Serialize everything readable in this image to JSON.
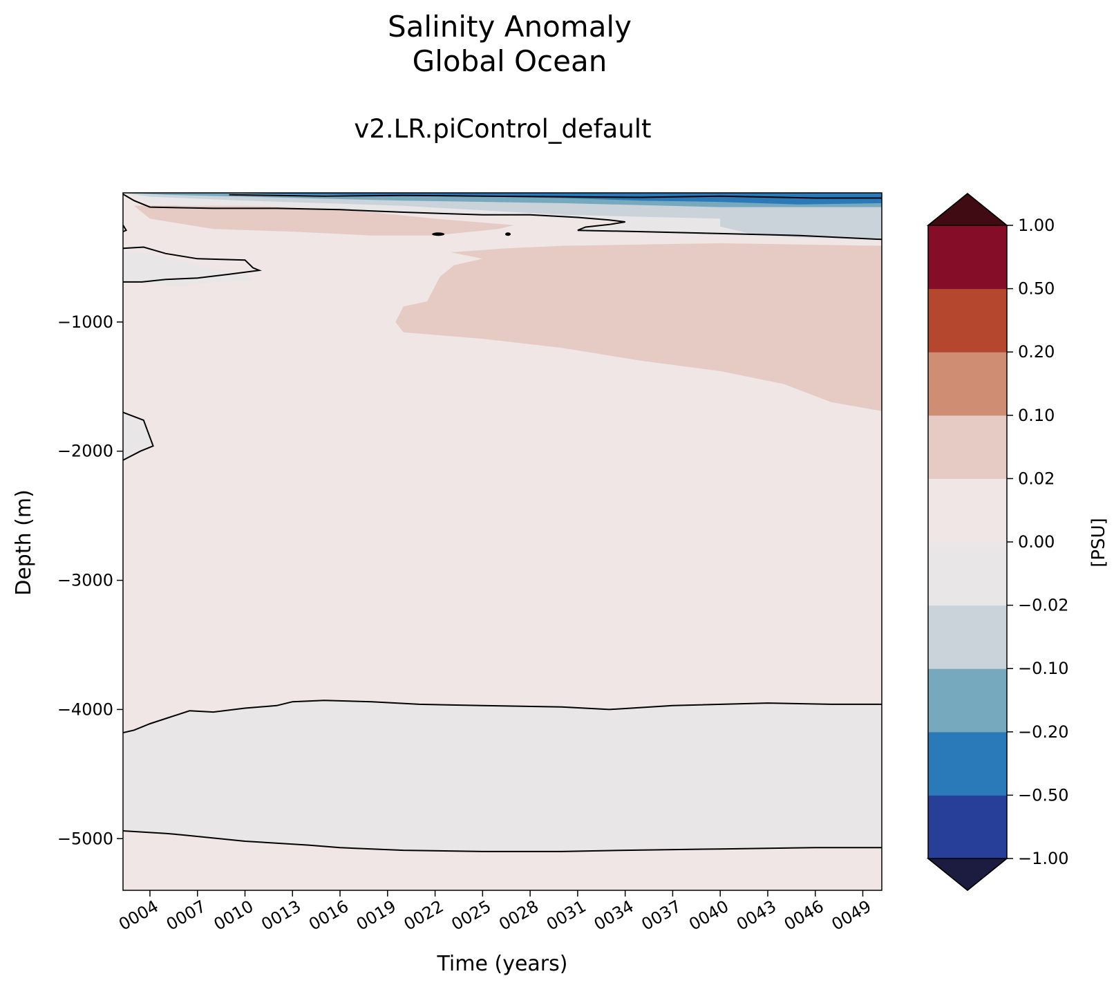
{
  "chart_data": {
    "type": "heatmap",
    "title": "Salinity Anomaly",
    "region": "Global Ocean",
    "subtitle": "v2.LR.piControl_default",
    "xlabel": "Time (years)",
    "ylabel": "Depth (m)",
    "x_range": [
      2.3,
      50.2
    ],
    "y_range": [
      -5400,
      0
    ],
    "x_ticks": [
      "0004",
      "0007",
      "0010",
      "0013",
      "0016",
      "0019",
      "0022",
      "0025",
      "0028",
      "0031",
      "0034",
      "0037",
      "0040",
      "0043",
      "0046",
      "0049"
    ],
    "x_tick_values": [
      4,
      7,
      10,
      13,
      16,
      19,
      22,
      25,
      28,
      31,
      34,
      37,
      40,
      43,
      46,
      49
    ],
    "y_ticks": [
      -1000,
      -2000,
      -3000,
      -4000,
      -5000
    ],
    "y_tick_labels": [
      "−1000",
      "−2000",
      "−3000",
      "−4000",
      "−5000"
    ],
    "colorbar": {
      "label": "[PSU]",
      "levels": [
        -1.0,
        -0.5,
        -0.2,
        -0.1,
        -0.02,
        0.0,
        0.02,
        0.1,
        0.2,
        0.5,
        1.0
      ],
      "tick_labels": [
        "−1.00",
        "−0.50",
        "−0.20",
        "−0.10",
        "−0.02",
        "0.00",
        "0.02",
        "0.10",
        "0.20",
        "0.50",
        "1.00"
      ],
      "colors": [
        "#283f9a",
        "#2a7aba",
        "#77a9be",
        "#cad3da",
        "#e8e6e7",
        "#efe6e5",
        "#e6cbc4",
        "#cf8d73",
        "#b5472f",
        "#860d27"
      ],
      "under_color": "#1b1c40",
      "over_color": "#410b13",
      "extend": "both"
    },
    "background_level_color": "#efe6e5",
    "regions": [
      {
        "band": "0.02 to 0.10",
        "color": "#e6cbc4",
        "desc": "upper ocean positive anomaly",
        "points": [
          [
            26.5,
            -430
          ],
          [
            30,
            -410
          ],
          [
            40,
            -390
          ],
          [
            50.2,
            -410
          ],
          [
            50.2,
            -1690
          ],
          [
            47,
            -1620
          ],
          [
            44,
            -1480
          ],
          [
            40,
            -1380
          ],
          [
            35,
            -1300
          ],
          [
            30,
            -1200
          ],
          [
            25,
            -1130
          ],
          [
            20,
            -1080
          ],
          [
            19.5,
            -1000
          ],
          [
            20,
            -880
          ],
          [
            21.5,
            -840
          ],
          [
            22.3,
            -650
          ],
          [
            23.2,
            -560
          ],
          [
            25,
            -510
          ],
          [
            23,
            -460
          ]
        ]
      },
      {
        "band": "0.02 to 0.10",
        "color": "#e6cbc4",
        "desc": "near-surface positive anomaly",
        "points": [
          [
            3,
            -100
          ],
          [
            10,
            -90
          ],
          [
            18,
            -150
          ],
          [
            22,
            -200
          ],
          [
            25,
            -230
          ],
          [
            27,
            -250
          ],
          [
            26,
            -280
          ],
          [
            22,
            -330
          ],
          [
            18,
            -330
          ],
          [
            13,
            -300
          ],
          [
            8,
            -280
          ],
          [
            4,
            -200
          ]
        ]
      },
      {
        "band": "-0.02 to 0.00",
        "color": "#e8e6e7",
        "desc": "upper-left negative patch",
        "points": [
          [
            2.3,
            -450
          ],
          [
            4,
            -470
          ],
          [
            6,
            -530
          ],
          [
            8,
            -590
          ],
          [
            10,
            -620
          ],
          [
            10.5,
            -680
          ],
          [
            8,
            -690
          ],
          [
            6,
            -720
          ],
          [
            2.3,
            -700
          ]
        ]
      },
      {
        "band": "-0.02 to 0.00",
        "color": "#e8e6e7",
        "desc": "left mid-depth patch",
        "points": [
          [
            2.3,
            -1700
          ],
          [
            3.6,
            -1780
          ],
          [
            4.2,
            -1950
          ],
          [
            3.4,
            -2000
          ],
          [
            2.3,
            -2070
          ]
        ]
      },
      {
        "band": "-0.02 to 0.00",
        "color": "#e8e6e7",
        "desc": "deep negative band",
        "points": [
          [
            2.3,
            -4180
          ],
          [
            3,
            -4160
          ],
          [
            4,
            -4110
          ],
          [
            5,
            -4070
          ],
          [
            6.5,
            -4010
          ],
          [
            8,
            -4020
          ],
          [
            10,
            -3990
          ],
          [
            12,
            -3970
          ],
          [
            13,
            -3940
          ],
          [
            15,
            -3930
          ],
          [
            18,
            -3940
          ],
          [
            21,
            -3960
          ],
          [
            25,
            -3970
          ],
          [
            30,
            -3980
          ],
          [
            33,
            -4000
          ],
          [
            37,
            -3970
          ],
          [
            43,
            -3950
          ],
          [
            47,
            -3960
          ],
          [
            50.2,
            -3960
          ],
          [
            50.2,
            -5070
          ],
          [
            46,
            -5070
          ],
          [
            40,
            -5080
          ],
          [
            34,
            -5090
          ],
          [
            30,
            -5100
          ],
          [
            25,
            -5100
          ],
          [
            20,
            -5090
          ],
          [
            16,
            -5070
          ],
          [
            14,
            -5050
          ],
          [
            10,
            -5020
          ],
          [
            6,
            -4970
          ],
          [
            5,
            -4960
          ],
          [
            2.3,
            -4940
          ]
        ]
      },
      {
        "band": "-0.02 to 0.00",
        "color": "#e8e6e7",
        "desc": "surface band",
        "points": [
          [
            2.3,
            0
          ],
          [
            50.2,
            0
          ],
          [
            50.2,
            -370
          ],
          [
            47,
            -360
          ],
          [
            40,
            -330
          ],
          [
            35,
            -310
          ],
          [
            31,
            -300
          ],
          [
            31.5,
            -270
          ],
          [
            34,
            -250
          ],
          [
            33,
            -215
          ],
          [
            29,
            -190
          ],
          [
            25,
            -170
          ],
          [
            20,
            -150
          ],
          [
            15,
            -120
          ],
          [
            10,
            -100
          ],
          [
            6,
            -100
          ],
          [
            4,
            -80
          ],
          [
            2.5,
            -10
          ]
        ]
      },
      {
        "band": "-0.10 to -0.02",
        "color": "#cad3da",
        "desc": "shallow negative layer",
        "points": [
          [
            2.3,
            0
          ],
          [
            50.2,
            0
          ],
          [
            50.2,
            -350
          ],
          [
            45,
            -345
          ],
          [
            42,
            -320
          ],
          [
            40,
            -260
          ],
          [
            40,
            -200
          ],
          [
            30,
            -170
          ],
          [
            20,
            -100
          ],
          [
            10,
            -60
          ],
          [
            4,
            -30
          ]
        ]
      },
      {
        "band": "-0.20 to -0.10",
        "color": "#77a9be",
        "desc": "shallow negative layer",
        "points": [
          [
            2.3,
            0
          ],
          [
            50.2,
            0
          ],
          [
            50.2,
            -110
          ],
          [
            40,
            -110
          ],
          [
            30,
            -80
          ],
          [
            20,
            -60
          ],
          [
            10,
            -30
          ],
          [
            5,
            -15
          ]
        ]
      },
      {
        "band": "-0.50 to -0.20",
        "color": "#2a7aba",
        "desc": "surface strong negative",
        "points": [
          [
            9,
            0
          ],
          [
            50.2,
            0
          ],
          [
            50.2,
            -80
          ],
          [
            45,
            -90
          ],
          [
            40,
            -70
          ],
          [
            35,
            -60
          ],
          [
            30,
            -40
          ],
          [
            20,
            -20
          ],
          [
            12,
            -10
          ]
        ]
      }
    ],
    "contours": [
      {
        "label": "surface contour",
        "points": [
          [
            9,
            -15
          ],
          [
            15,
            -25
          ],
          [
            20,
            -20
          ],
          [
            25,
            -25
          ],
          [
            30,
            -30
          ],
          [
            35,
            -35
          ],
          [
            40,
            -25
          ],
          [
            46,
            -40
          ],
          [
            50.2,
            -40
          ]
        ]
      },
      {
        "label": "upper contour",
        "points": [
          [
            2.3,
            -10
          ],
          [
            3,
            -60
          ],
          [
            4,
            -110
          ],
          [
            8,
            -120
          ],
          [
            12,
            -120
          ],
          [
            16,
            -130
          ],
          [
            20,
            -150
          ],
          [
            25,
            -170
          ],
          [
            28,
            -170
          ],
          [
            31,
            -190
          ],
          [
            33,
            -210
          ],
          [
            34,
            -225
          ],
          [
            33,
            -245
          ],
          [
            31.5,
            -265
          ],
          [
            31,
            -290
          ],
          [
            35,
            -300
          ],
          [
            40,
            -315
          ],
          [
            45,
            -330
          ],
          [
            50.2,
            -360
          ]
        ]
      },
      {
        "label": "upper-left contour",
        "points": [
          [
            2.3,
            -250
          ],
          [
            2.5,
            -290
          ],
          [
            2.3,
            -300
          ]
        ]
      },
      {
        "label": "upper-left contour 2",
        "points": [
          [
            2.3,
            -430
          ],
          [
            3.6,
            -420
          ],
          [
            5,
            -470
          ],
          [
            7,
            -510
          ],
          [
            10,
            -520
          ],
          [
            10.5,
            -580
          ],
          [
            10.9,
            -600
          ],
          [
            9,
            -630
          ],
          [
            7,
            -660
          ],
          [
            5,
            -670
          ],
          [
            3.5,
            -690
          ],
          [
            2.3,
            -690
          ]
        ]
      },
      {
        "label": "mid-depth contour",
        "points": [
          [
            2.3,
            -1700
          ],
          [
            3.6,
            -1760
          ],
          [
            4.2,
            -1960
          ],
          [
            3.4,
            -2000
          ],
          [
            2.3,
            -2070
          ]
        ]
      },
      {
        "label": "deep contour",
        "points": [
          [
            2.3,
            -4180
          ],
          [
            3,
            -4160
          ],
          [
            4,
            -4110
          ],
          [
            5,
            -4070
          ],
          [
            6.5,
            -4010
          ],
          [
            8,
            -4020
          ],
          [
            10,
            -3990
          ],
          [
            12,
            -3970
          ],
          [
            13,
            -3940
          ],
          [
            15,
            -3930
          ],
          [
            18,
            -3940
          ],
          [
            21,
            -3960
          ],
          [
            25,
            -3970
          ],
          [
            30,
            -3980
          ],
          [
            33,
            -4000
          ],
          [
            37,
            -3970
          ],
          [
            43,
            -3950
          ],
          [
            47,
            -3960
          ],
          [
            50.2,
            -3960
          ]
        ]
      },
      {
        "label": "bottom contour",
        "points": [
          [
            2.3,
            -4940
          ],
          [
            5,
            -4960
          ],
          [
            6,
            -4970
          ],
          [
            10,
            -5020
          ],
          [
            14,
            -5050
          ],
          [
            16,
            -5070
          ],
          [
            20,
            -5090
          ],
          [
            25,
            -5100
          ],
          [
            30,
            -5100
          ],
          [
            34,
            -5090
          ],
          [
            40,
            -5080
          ],
          [
            46,
            -5070
          ],
          [
            50.2,
            -5070
          ]
        ]
      }
    ],
    "blobs": [
      [
        22.2,
        -320
      ],
      [
        26.6,
        -320
      ]
    ],
    "grid": false
  }
}
